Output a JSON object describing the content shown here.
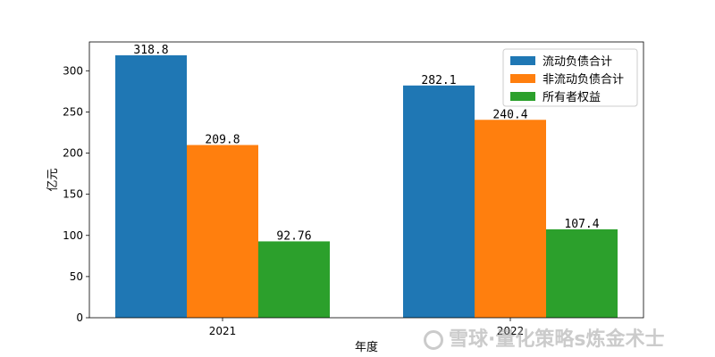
{
  "chart_data": {
    "type": "bar",
    "categories": [
      "2021",
      "2022"
    ],
    "series": [
      {
        "name": "流动负债合计",
        "values": [
          318.8,
          282.1
        ],
        "labels": [
          "318.8",
          "282.1"
        ],
        "color": "#1f77b4"
      },
      {
        "name": "非流动负债合计",
        "values": [
          209.8,
          240.4
        ],
        "labels": [
          "209.8",
          "240.4"
        ],
        "color": "#ff7f0e"
      },
      {
        "name": "所有者权益",
        "values": [
          92.76,
          107.4
        ],
        "labels": [
          "92.76",
          "107.4"
        ],
        "color": "#2ca02c"
      }
    ],
    "xlabel": "年度",
    "ylabel": "亿元",
    "ylim": [
      0,
      335
    ],
    "yticks": [
      0,
      50,
      100,
      150,
      200,
      250,
      300
    ],
    "legend_position": "top-right",
    "grid": false
  },
  "watermark": {
    "text": "雪球·量化策略s炼金术士",
    "icon": "snowball-logo-icon"
  }
}
